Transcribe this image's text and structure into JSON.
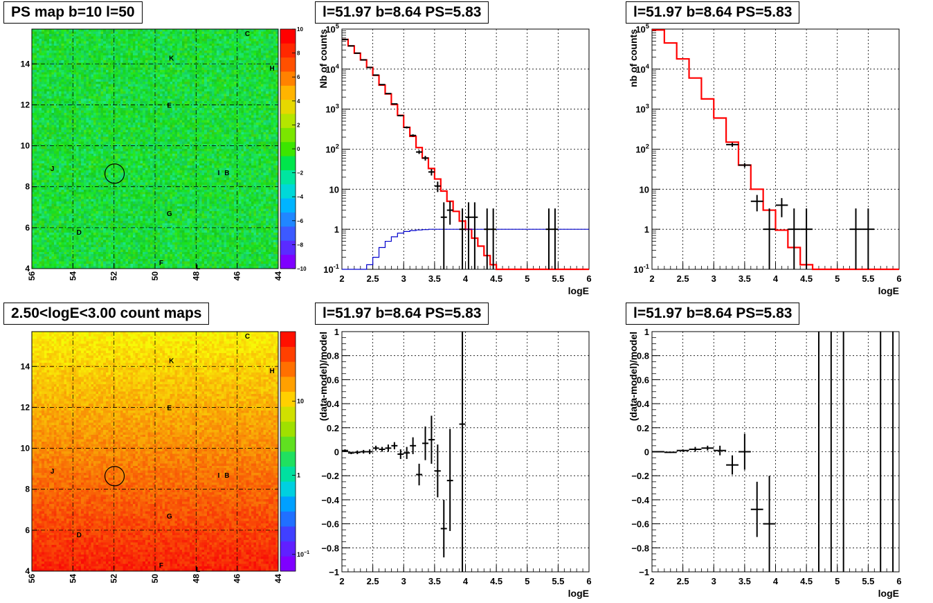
{
  "page": {
    "background": "#ffffff"
  },
  "panels": {
    "map_ps": {
      "title": "PS map b=10 l=50"
    },
    "spec_all": {
      "title": "l=51.97 b=8.64 PS=5.83"
    },
    "spec_ps": {
      "title": "l=51.97 b=8.64 PS=5.83"
    },
    "map_counts": {
      "title": "2.50<logE<3.00 count maps"
    },
    "res_all": {
      "title": "l=51.97 b=8.64 PS=5.83"
    },
    "res_ps": {
      "title": "l=51.97 b=8.64 PS=5.83"
    }
  },
  "colors": {
    "model_line": "#ff0000",
    "background_line": "#0000cc",
    "data_points": "#000000"
  },
  "chart_data": [
    {
      "id": "map_ps",
      "type": "heatmap",
      "title": "PS map b=10 l=50",
      "x_ticks": [
        "56",
        "54",
        "52",
        "50",
        "48",
        "46",
        "44"
      ],
      "y_ticks": [
        "4",
        "6",
        "8",
        "10",
        "12",
        "14"
      ],
      "xlim": [
        56,
        44
      ],
      "ylim": [
        4,
        15.7
      ],
      "colorbar_ticks": [
        "10",
        "8",
        "6",
        "4",
        "2",
        "0",
        "-2",
        "-4",
        "-6",
        "-8",
        "-10"
      ],
      "colorbar_range": [
        -10,
        10
      ],
      "dominant_value": "about 0 (green)",
      "circle_center": [
        51.97,
        8.64
      ],
      "source_labels": [
        {
          "text": "C",
          "l": 45.5,
          "b": 15.5
        },
        {
          "text": "K",
          "l": 49.2,
          "b": 14.3
        },
        {
          "text": "H",
          "l": 44.3,
          "b": 13.8
        },
        {
          "text": "E",
          "l": 49.3,
          "b": 12.0
        },
        {
          "text": "J",
          "l": 55.0,
          "b": 8.9
        },
        {
          "text": "I",
          "l": 46.9,
          "b": 8.7
        },
        {
          "text": "B",
          "l": 46.5,
          "b": 8.7
        },
        {
          "text": "G",
          "l": 49.3,
          "b": 6.7
        },
        {
          "text": "D",
          "l": 53.7,
          "b": 5.8
        },
        {
          "text": "F",
          "l": 49.7,
          "b": 4.3
        },
        {
          "text": "L",
          "l": 47.9,
          "b": 4.1
        }
      ]
    },
    {
      "id": "spec_all",
      "type": "line",
      "title": "l=51.97 b=8.64 PS=5.83",
      "xlabel": "logE",
      "ylabel": "Nb of counts",
      "xlim": [
        2,
        6
      ],
      "ylim": [
        0.1,
        100000
      ],
      "ylog": true,
      "grid": true,
      "x_ticks": [
        "2",
        "2.5",
        "3",
        "3.5",
        "4",
        "4.5",
        "5",
        "5.5",
        "6"
      ],
      "y_ticks": [
        "10^-1",
        "1",
        "10",
        "10^2",
        "10^3",
        "10^4",
        "10^5"
      ],
      "bin_edges": [
        2.0,
        2.1,
        2.2,
        2.3,
        2.4,
        2.5,
        2.6,
        2.7,
        2.8,
        2.9,
        3.0,
        3.1,
        3.2,
        3.3,
        3.4,
        3.5,
        3.6,
        3.7,
        3.8,
        3.9,
        4.0,
        4.1,
        4.2,
        4.3,
        4.4,
        4.5,
        4.6,
        4.7,
        4.8,
        4.9,
        5.0,
        5.1,
        5.2,
        5.3,
        5.4,
        5.5,
        5.6,
        5.7,
        5.8,
        5.9,
        6.0
      ],
      "series": [
        {
          "name": "",
          "style": "step-red",
          "values": [
            55000,
            38000,
            25000,
            17000,
            11000,
            7000,
            4000,
            2400,
            1300,
            700,
            350,
            210,
            110,
            60,
            33,
            18,
            9,
            5,
            2.8,
            1.6,
            1.0,
            0.6,
            0.38,
            0.22,
            0.13,
            0.1,
            0.1,
            0.1,
            0.1,
            0.1,
            0.1,
            0.1,
            0.1,
            0.1,
            0.1,
            0.1,
            0.1,
            0.1,
            0.1,
            0.1
          ]
        },
        {
          "name": "",
          "style": "step-blue",
          "values": [
            0.1,
            0.1,
            0.1,
            0.1,
            0.13,
            0.2,
            0.35,
            0.5,
            0.65,
            0.8,
            0.88,
            0.93,
            0.96,
            0.98,
            1.0,
            1.0,
            1.0,
            1.0,
            1.0,
            1.0,
            1.0,
            1.0,
            1.0,
            1.0,
            1.0,
            1.0,
            1.0,
            1.0,
            1.0,
            1.0,
            1.0,
            1.0,
            1.0,
            1.0,
            1.0,
            1.0,
            1.0,
            1.0,
            1.0,
            1.0
          ]
        },
        {
          "name": "",
          "style": "points",
          "points": [
            {
              "x": 2.05,
              "y": 55000,
              "ylo": 54700,
              "yhi": 55300
            },
            {
              "x": 2.15,
              "y": 38000,
              "ylo": 37600,
              "yhi": 38400
            },
            {
              "x": 2.25,
              "y": 25000,
              "ylo": 24700,
              "yhi": 25300
            },
            {
              "x": 2.35,
              "y": 17000,
              "ylo": 16800,
              "yhi": 17200
            },
            {
              "x": 2.45,
              "y": 11000,
              "ylo": 10800,
              "yhi": 11200
            },
            {
              "x": 2.55,
              "y": 7100,
              "ylo": 6900,
              "yhi": 7300
            },
            {
              "x": 2.65,
              "y": 4100,
              "ylo": 4000,
              "yhi": 4200
            },
            {
              "x": 2.75,
              "y": 2450,
              "ylo": 2400,
              "yhi": 2500
            },
            {
              "x": 2.85,
              "y": 1350,
              "ylo": 1310,
              "yhi": 1390
            },
            {
              "x": 2.95,
              "y": 690,
              "ylo": 660,
              "yhi": 720
            },
            {
              "x": 3.05,
              "y": 350,
              "ylo": 330,
              "yhi": 370
            },
            {
              "x": 3.15,
              "y": 220,
              "ylo": 205,
              "yhi": 235
            },
            {
              "x": 3.25,
              "y": 85,
              "ylo": 76,
              "yhi": 94
            },
            {
              "x": 3.35,
              "y": 60,
              "ylo": 52,
              "yhi": 68
            },
            {
              "x": 3.45,
              "y": 27,
              "ylo": 22,
              "yhi": 32
            },
            {
              "x": 3.55,
              "y": 12,
              "ylo": 8.5,
              "yhi": 15.5
            },
            {
              "x": 3.65,
              "y": 2,
              "ylo": 0.1,
              "yhi": 4.7
            },
            {
              "x": 3.75,
              "y": 3,
              "ylo": 1.3,
              "yhi": 5
            },
            {
              "x": 3.95,
              "y": 1,
              "ylo": 0.1,
              "yhi": 3.3
            },
            {
              "x": 4.05,
              "y": 2,
              "ylo": 0.1,
              "yhi": 4.7
            },
            {
              "x": 4.15,
              "y": 2,
              "ylo": 0.1,
              "yhi": 4.7
            },
            {
              "x": 4.35,
              "y": 1,
              "ylo": 0.1,
              "yhi": 3.3
            },
            {
              "x": 4.45,
              "y": 1,
              "ylo": 0.1,
              "yhi": 3.3
            },
            {
              "x": 5.35,
              "y": 1,
              "ylo": 0.1,
              "yhi": 3.3
            },
            {
              "x": 5.45,
              "y": 1,
              "ylo": 0.1,
              "yhi": 3.3
            }
          ]
        }
      ]
    },
    {
      "id": "spec_ps",
      "type": "line",
      "title": "l=51.97 b=8.64 PS=5.83",
      "xlabel": "logE",
      "ylabel": "nb of counts",
      "xlim": [
        2,
        6
      ],
      "ylim": [
        0.1,
        100000
      ],
      "ylog": true,
      "grid": true,
      "x_ticks": [
        "2",
        "2.5",
        "3",
        "3.5",
        "4",
        "4.5",
        "5",
        "5.5",
        "6"
      ],
      "y_ticks": [
        "10^-1",
        "1",
        "10",
        "10^2",
        "10^3",
        "10^4",
        "10^5"
      ],
      "bin_edges": [
        2.0,
        2.2,
        2.4,
        2.6,
        2.8,
        3.0,
        3.2,
        3.4,
        3.6,
        3.8,
        4.0,
        4.2,
        4.4,
        4.6,
        4.8,
        5.0,
        5.2,
        5.4,
        5.6,
        5.8,
        6.0
      ],
      "series": [
        {
          "name": "",
          "style": "step-red",
          "values": [
            95000,
            45000,
            18000,
            6000,
            1800,
            600,
            150,
            40,
            10,
            3,
            0.95,
            0.35,
            0.13,
            0.1,
            0.1,
            0.1,
            0.1,
            0.1,
            0.1,
            0.1
          ]
        },
        {
          "name": "",
          "style": "points",
          "points": [
            {
              "x": 3.3,
              "y": 130,
              "ylo": 115,
              "yhi": 145,
              "xerr": 0.1
            },
            {
              "x": 3.5,
              "y": 40,
              "ylo": 35,
              "yhi": 45,
              "xerr": 0.1
            },
            {
              "x": 3.7,
              "y": 5,
              "ylo": 2.8,
              "yhi": 7.2,
              "xerr": 0.1
            },
            {
              "x": 3.9,
              "y": 1,
              "ylo": 0.1,
              "yhi": 3.3,
              "xerr": 0.1
            },
            {
              "x": 4.1,
              "y": 4,
              "ylo": 2,
              "yhi": 6,
              "xerr": 0.1
            },
            {
              "x": 4.3,
              "y": 1,
              "ylo": 0.1,
              "yhi": 3.3,
              "xerr": 0.1
            },
            {
              "x": 4.5,
              "y": 1,
              "ylo": 0.1,
              "yhi": 3.3,
              "xerr": 0.1
            },
            {
              "x": 5.3,
              "y": 1,
              "ylo": 0.1,
              "yhi": 3.3,
              "xerr": 0.1
            },
            {
              "x": 5.5,
              "y": 1,
              "ylo": 0.1,
              "yhi": 3.3,
              "xerr": 0.1
            }
          ]
        }
      ]
    },
    {
      "id": "map_counts",
      "type": "heatmap",
      "title": "2.50<logE<3.00 count maps",
      "x_ticks": [
        "56",
        "54",
        "52",
        "50",
        "48",
        "46",
        "44"
      ],
      "y_ticks": [
        "4",
        "6",
        "8",
        "10",
        "12",
        "14"
      ],
      "xlim": [
        56,
        44
      ],
      "ylim": [
        4,
        15.7
      ],
      "colorbar_ticks": [
        "10",
        "1",
        "10^-1"
      ],
      "colorbar_log": true,
      "gradient": "yellow (high b) to red (low b)",
      "circle_center": [
        51.97,
        8.64
      ],
      "source_labels": [
        {
          "text": "C",
          "l": 45.5,
          "b": 15.5
        },
        {
          "text": "K",
          "l": 49.2,
          "b": 14.3
        },
        {
          "text": "H",
          "l": 44.3,
          "b": 13.8
        },
        {
          "text": "E",
          "l": 49.3,
          "b": 12.0
        },
        {
          "text": "J",
          "l": 55.0,
          "b": 8.9
        },
        {
          "text": "I",
          "l": 46.9,
          "b": 8.7
        },
        {
          "text": "B",
          "l": 46.5,
          "b": 8.7
        },
        {
          "text": "G",
          "l": 49.3,
          "b": 6.7
        },
        {
          "text": "D",
          "l": 53.7,
          "b": 5.8
        },
        {
          "text": "F",
          "l": 49.7,
          "b": 4.3
        },
        {
          "text": "L",
          "l": 47.9,
          "b": 4.1
        }
      ]
    },
    {
      "id": "res_all",
      "type": "scatter",
      "title": "l=51.97 b=8.64 PS=5.83",
      "xlabel": "logE",
      "ylabel": "(data-model)/model",
      "xlim": [
        2,
        6
      ],
      "ylim": [
        -1,
        1
      ],
      "grid": true,
      "x_ticks": [
        "2",
        "2.5",
        "3",
        "3.5",
        "4",
        "4.5",
        "5",
        "5.5",
        "6"
      ],
      "y_ticks": [
        "-1",
        "-0.8",
        "-0.6",
        "-0.4",
        "-0.2",
        "0",
        "0.2",
        "0.4",
        "0.6",
        "0.8",
        "1"
      ],
      "points": [
        {
          "x": 2.05,
          "y": 0.01,
          "ylo": 0.0,
          "yhi": 0.02
        },
        {
          "x": 2.15,
          "y": -0.01,
          "ylo": -0.02,
          "yhi": 0.0
        },
        {
          "x": 2.25,
          "y": -0.005,
          "ylo": -0.02,
          "yhi": 0.01
        },
        {
          "x": 2.35,
          "y": 0.0,
          "ylo": -0.015,
          "yhi": 0.015
        },
        {
          "x": 2.45,
          "y": 0.0,
          "ylo": -0.02,
          "yhi": 0.02
        },
        {
          "x": 2.55,
          "y": 0.03,
          "ylo": 0.01,
          "yhi": 0.05
        },
        {
          "x": 2.65,
          "y": 0.02,
          "ylo": 0.0,
          "yhi": 0.04
        },
        {
          "x": 2.75,
          "y": 0.03,
          "ylo": 0.0,
          "yhi": 0.06
        },
        {
          "x": 2.85,
          "y": 0.05,
          "ylo": 0.02,
          "yhi": 0.08
        },
        {
          "x": 2.95,
          "y": -0.02,
          "ylo": -0.06,
          "yhi": 0.02
        },
        {
          "x": 3.05,
          "y": -0.01,
          "ylo": -0.06,
          "yhi": 0.04
        },
        {
          "x": 3.15,
          "y": 0.05,
          "ylo": -0.02,
          "yhi": 0.12
        },
        {
          "x": 3.25,
          "y": -0.19,
          "ylo": -0.28,
          "yhi": -0.1
        },
        {
          "x": 3.35,
          "y": 0.07,
          "ylo": -0.07,
          "yhi": 0.21
        },
        {
          "x": 3.45,
          "y": 0.1,
          "ylo": -0.1,
          "yhi": 0.3
        },
        {
          "x": 3.55,
          "y": -0.16,
          "ylo": -0.38,
          "yhi": 0.06
        },
        {
          "x": 3.65,
          "y": -0.64,
          "ylo": -0.88,
          "yhi": -0.4
        },
        {
          "x": 3.75,
          "y": -0.24,
          "ylo": -0.66,
          "yhi": 0.19
        },
        {
          "x": 3.95,
          "y": 0.23,
          "ylo": -1.0,
          "yhi": 1.0
        }
      ]
    },
    {
      "id": "res_ps",
      "type": "scatter",
      "title": "l=51.97 b=8.64 PS=5.83",
      "xlabel": "logE",
      "ylabel": "(data-model)/model",
      "xlim": [
        2,
        6
      ],
      "ylim": [
        -1,
        1
      ],
      "grid": true,
      "x_ticks": [
        "2",
        "2.5",
        "3",
        "3.5",
        "4",
        "4.5",
        "5",
        "5.5",
        "6"
      ],
      "y_ticks": [
        "-1",
        "-0.8",
        "-0.6",
        "-0.4",
        "-0.2",
        "0",
        "0.2",
        "0.4",
        "0.6",
        "0.8",
        "1"
      ],
      "points": [
        {
          "x": 2.1,
          "y": 0.0,
          "ylo": -0.005,
          "yhi": 0.005,
          "xerr": 0.1
        },
        {
          "x": 2.3,
          "y": -0.005,
          "ylo": -0.01,
          "yhi": 0.0,
          "xerr": 0.1
        },
        {
          "x": 2.5,
          "y": 0.01,
          "ylo": 0.0,
          "yhi": 0.02,
          "xerr": 0.1
        },
        {
          "x": 2.7,
          "y": 0.02,
          "ylo": 0.0,
          "yhi": 0.04,
          "xerr": 0.1
        },
        {
          "x": 2.9,
          "y": 0.03,
          "ylo": 0.01,
          "yhi": 0.05,
          "xerr": 0.1
        },
        {
          "x": 3.1,
          "y": 0.01,
          "ylo": -0.03,
          "yhi": 0.05,
          "xerr": 0.1
        },
        {
          "x": 3.3,
          "y": -0.11,
          "ylo": -0.19,
          "yhi": -0.03,
          "xerr": 0.1
        },
        {
          "x": 3.5,
          "y": 0.0,
          "ylo": -0.15,
          "yhi": 0.15,
          "xerr": 0.1
        },
        {
          "x": 3.7,
          "y": -0.48,
          "ylo": -0.71,
          "yhi": -0.25,
          "xerr": 0.1
        },
        {
          "x": 3.9,
          "y": -0.6,
          "ylo": -1.0,
          "yhi": -0.2,
          "xerr": 0.1
        },
        {
          "x": 4.7,
          "y": 1.0,
          "ylo": -1.0,
          "yhi": 1.0,
          "xerr": 0
        },
        {
          "x": 4.9,
          "y": 1.0,
          "ylo": -1.0,
          "yhi": 1.0,
          "xerr": 0
        },
        {
          "x": 5.1,
          "y": 1.0,
          "ylo": -1.0,
          "yhi": 1.0,
          "xerr": 0
        },
        {
          "x": 5.7,
          "y": 1.0,
          "ylo": -1.0,
          "yhi": 1.0,
          "xerr": 0
        },
        {
          "x": 5.9,
          "y": 1.0,
          "ylo": -1.0,
          "yhi": 1.0,
          "xerr": 0
        }
      ]
    }
  ]
}
